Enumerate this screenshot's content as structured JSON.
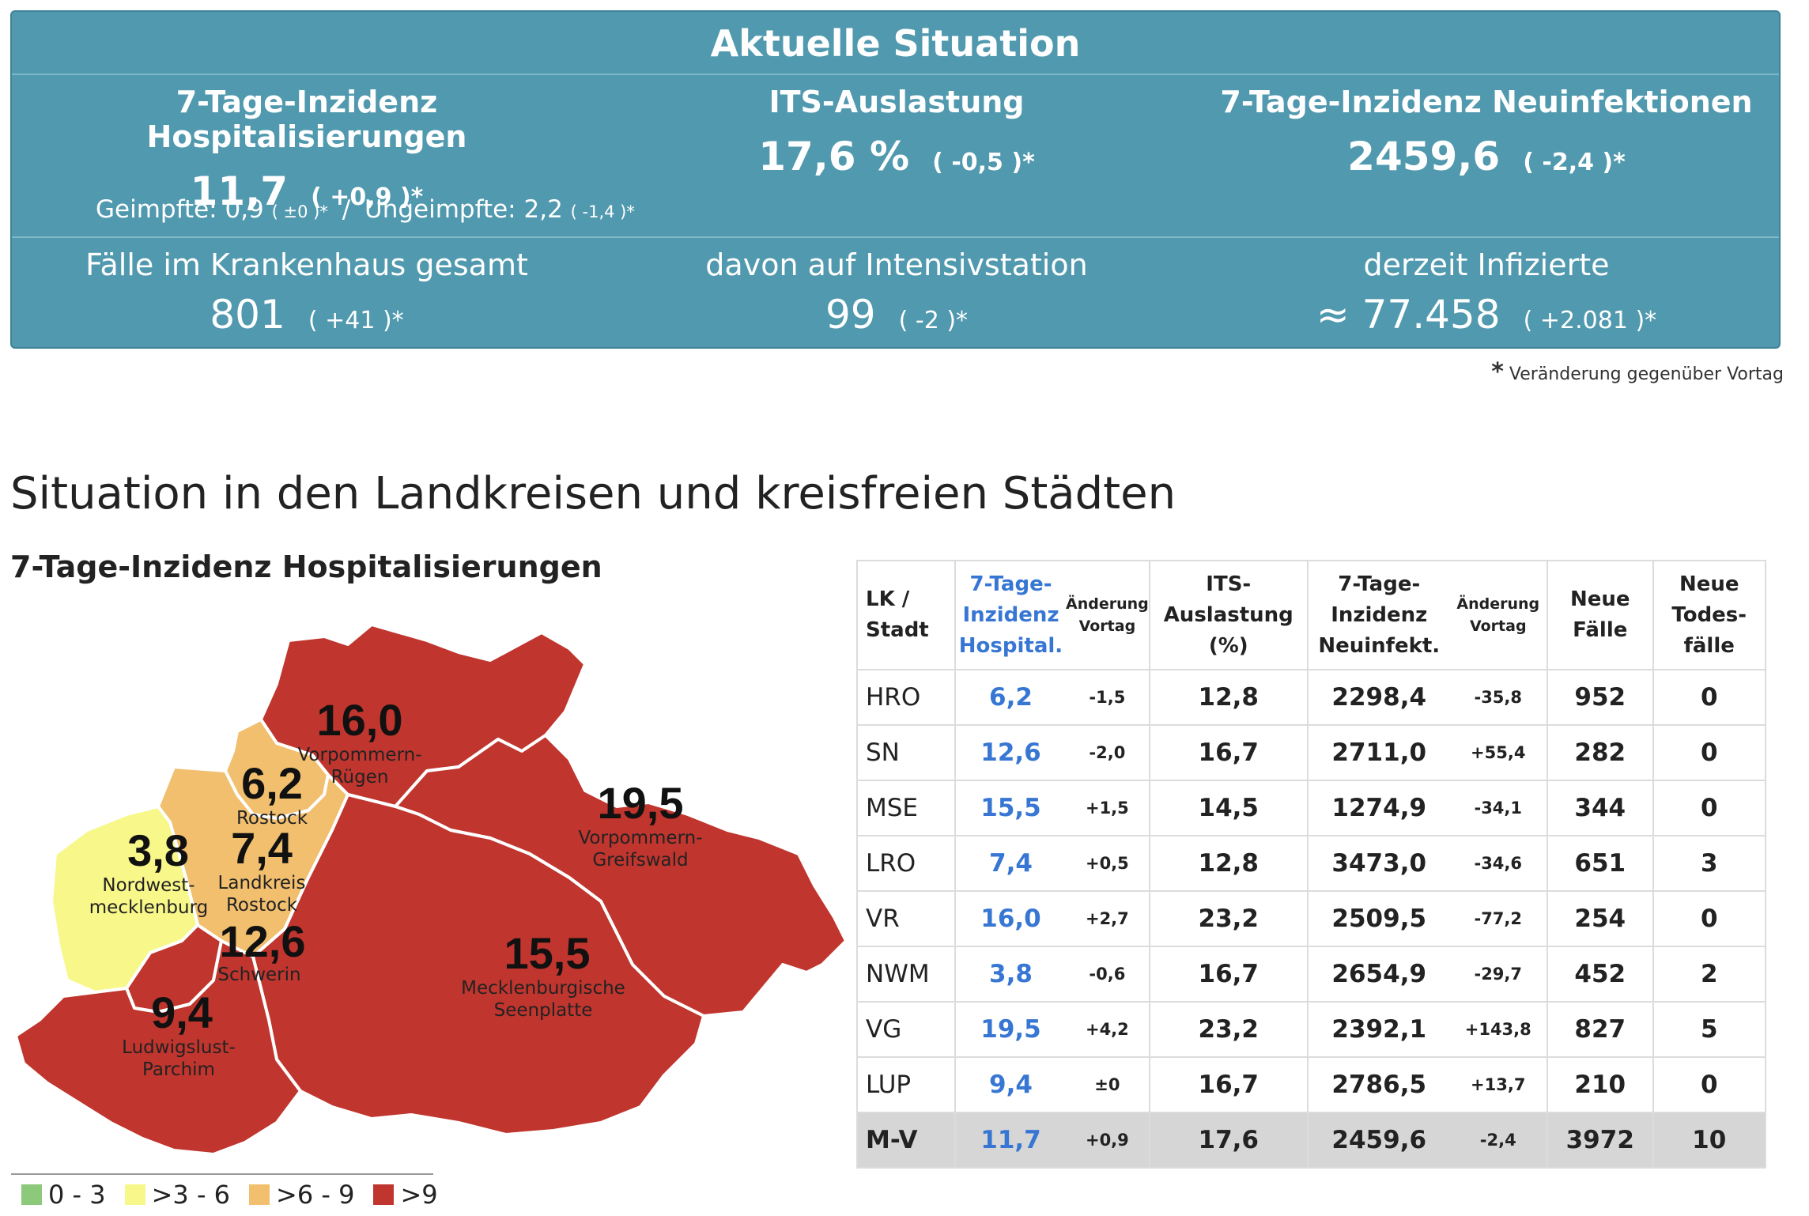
{
  "banner": {
    "title": "Aktuelle Situation",
    "hosp": {
      "label": "7-Tage-Inzidenz Hospitalisierungen",
      "value": "11,7",
      "change": "( +0,9 )*"
    },
    "its": {
      "label": "ITS-Auslastung",
      "value": "17,6 %",
      "change": "( -0,5 )*"
    },
    "neu": {
      "label": "7-Tage-Inzidenz Neuinfektionen",
      "value": "2459,6",
      "change": "( -2,4 )*"
    },
    "vaccinated": {
      "label": "Geimpfte: 0,9",
      "change": "( ±0 )*",
      "sep": "/",
      "label2": "Ungeimpfte: 2,2",
      "change2": "( -1,4 )*"
    },
    "hospital_total": {
      "label": "Fälle im Krankenhaus gesamt",
      "value": "801",
      "change": "( +41 )*"
    },
    "icu": {
      "label": "davon auf Intensivstation",
      "value": "99",
      "change": "( -2 )*"
    },
    "infected": {
      "label": "derzeit Infizierte",
      "value": "≈ 77.458",
      "change": "( +2.081 )*"
    }
  },
  "footnote": {
    "star": "*",
    "text": "Veränderung gegenüber Vortag"
  },
  "section_heading": "Situation in den Landkreisen und kreisfreien Städten",
  "map": {
    "title": "7-Tage-Inzidenz Hospitalisierungen",
    "colors": {
      "low": "#8dc97a",
      "mid": "#f8f78a",
      "high": "#f1bf6e",
      "vhigh": "#c0352e"
    },
    "regions": [
      {
        "id": "VR",
        "value": "16,0",
        "l1": "Vorpommern-",
        "l2": "Rügen",
        "class": "vhigh"
      },
      {
        "id": "HRO",
        "value": "6,2",
        "l1": "Rostock",
        "class": "high"
      },
      {
        "id": "LRO",
        "value": "7,4",
        "l1": "Landkreis",
        "l2": "Rostock",
        "class": "high"
      },
      {
        "id": "VG",
        "value": "19,5",
        "l1": "Vorpommern-",
        "l2": "Greifswald",
        "class": "vhigh"
      },
      {
        "id": "NWM",
        "value": "3,8",
        "l1": "Nordwest-",
        "l2": "mecklenburg",
        "class": "mid"
      },
      {
        "id": "SN",
        "value": "12,6",
        "l1": "Schwerin",
        "class": "vhigh"
      },
      {
        "id": "MSE",
        "value": "15,5",
        "l1": "Mecklenburgische",
        "l2": "Seenplatte",
        "class": "vhigh"
      },
      {
        "id": "LUP",
        "value": "9,4",
        "l1": "Ludwigslust-",
        "l2": "Parchim",
        "class": "vhigh"
      }
    ],
    "legend": [
      "0 - 3",
      ">3 - 6",
      ">6 - 9",
      ">9"
    ]
  },
  "table": {
    "headers": {
      "lk": [
        "LK /",
        "Stadt"
      ],
      "hosp": [
        "7-Tage-",
        "Inzidenz",
        "Hospital."
      ],
      "change1": [
        "Änderung",
        "Vortag"
      ],
      "its": [
        "ITS-",
        "Auslastung",
        "(%)"
      ],
      "neu": [
        "7-Tage-",
        "Inzidenz",
        "Neuinfekt."
      ],
      "change2": [
        "Änderung",
        "Vortag"
      ],
      "cases": [
        "Neue",
        "Fälle"
      ],
      "deaths": [
        "Neue",
        "Todes-",
        "fälle"
      ]
    },
    "rows": [
      {
        "lk": "HRO",
        "hosp": "6,2",
        "c1": "-1,5",
        "its": "12,8",
        "neu": "2298,4",
        "c2": "-35,8",
        "cases": "952",
        "deaths": "0"
      },
      {
        "lk": "SN",
        "hosp": "12,6",
        "c1": "-2,0",
        "its": "16,7",
        "neu": "2711,0",
        "c2": "+55,4",
        "cases": "282",
        "deaths": "0"
      },
      {
        "lk": "MSE",
        "hosp": "15,5",
        "c1": "+1,5",
        "its": "14,5",
        "neu": "1274,9",
        "c2": "-34,1",
        "cases": "344",
        "deaths": "0"
      },
      {
        "lk": "LRO",
        "hosp": "7,4",
        "c1": "+0,5",
        "its": "12,8",
        "neu": "3473,0",
        "c2": "-34,6",
        "cases": "651",
        "deaths": "3"
      },
      {
        "lk": "VR",
        "hosp": "16,0",
        "c1": "+2,7",
        "its": "23,2",
        "neu": "2509,5",
        "c2": "-77,2",
        "cases": "254",
        "deaths": "0"
      },
      {
        "lk": "NWM",
        "hosp": "3,8",
        "c1": "-0,6",
        "its": "16,7",
        "neu": "2654,9",
        "c2": "-29,7",
        "cases": "452",
        "deaths": "2"
      },
      {
        "lk": "VG",
        "hosp": "19,5",
        "c1": "+4,2",
        "its": "23,2",
        "neu": "2392,1",
        "c2": "+143,8",
        "cases": "827",
        "deaths": "5"
      },
      {
        "lk": "LUP",
        "hosp": "9,4",
        "c1": "±0",
        "its": "16,7",
        "neu": "2786,5",
        "c2": "+13,7",
        "cases": "210",
        "deaths": "0"
      },
      {
        "lk": "M-V",
        "hosp": "11,7",
        "c1": "+0,9",
        "its": "17,6",
        "neu": "2459,6",
        "c2": "-2,4",
        "cases": "3972",
        "deaths": "10"
      }
    ]
  },
  "chart_data": {
    "type": "table",
    "title": "7-Tage-Inzidenz Hospitalisierungen",
    "categories": [
      "HRO",
      "SN",
      "MSE",
      "LRO",
      "VR",
      "NWM",
      "VG",
      "LUP",
      "M-V"
    ],
    "series": [
      {
        "name": "7-Tage-Inzidenz Hospital.",
        "values": [
          6.2,
          12.6,
          15.5,
          7.4,
          16.0,
          3.8,
          19.5,
          9.4,
          11.7
        ]
      },
      {
        "name": "Änderung Vortag (Hospital.)",
        "values": [
          -1.5,
          -2.0,
          1.5,
          0.5,
          2.7,
          -0.6,
          4.2,
          0,
          0.9
        ]
      },
      {
        "name": "ITS-Auslastung (%)",
        "values": [
          12.8,
          16.7,
          14.5,
          12.8,
          23.2,
          16.7,
          23.2,
          16.7,
          17.6
        ]
      },
      {
        "name": "7-Tage-Inzidenz Neuinfekt.",
        "values": [
          2298.4,
          2711.0,
          1274.9,
          3473.0,
          2509.5,
          2654.9,
          2392.1,
          2786.5,
          2459.6
        ]
      },
      {
        "name": "Änderung Vortag (Neuinfekt.)",
        "values": [
          -35.8,
          55.4,
          -34.1,
          -34.6,
          -77.2,
          -29.7,
          143.8,
          13.7,
          -2.4
        ]
      },
      {
        "name": "Neue Fälle",
        "values": [
          952,
          282,
          344,
          651,
          254,
          452,
          827,
          210,
          3972
        ]
      },
      {
        "name": "Neue Todesfälle",
        "values": [
          0,
          0,
          0,
          3,
          0,
          2,
          5,
          0,
          10
        ]
      }
    ],
    "legend": [
      "0 - 3",
      ">3 - 6",
      ">6 - 9",
      ">9"
    ]
  }
}
